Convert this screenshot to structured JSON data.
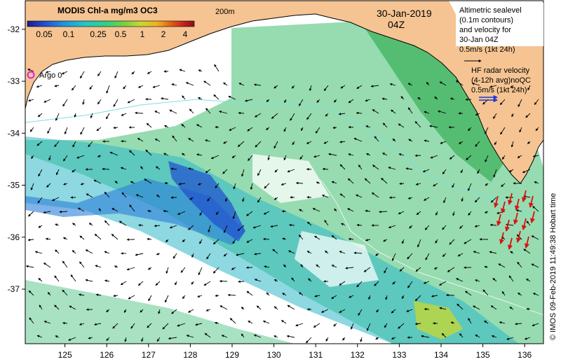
{
  "colorbar": {
    "title": "MODIS Chl-a mg/m3 OC3",
    "ticks": [
      "0.05",
      "0.1",
      "0.25",
      "0.5",
      "1",
      "2",
      "4"
    ],
    "colors": [
      "#1a1a8c",
      "#1f4fd0",
      "#1f95e0",
      "#20c8c8",
      "#35d080",
      "#78d040",
      "#c8d830",
      "#f0b020",
      "#e06018",
      "#c02020",
      "#8a1010"
    ]
  },
  "isobath_label": "200m",
  "date": "30-Jan-2019",
  "time": "04Z",
  "argo": {
    "label": "Argo 0",
    "color": "#dd22dd"
  },
  "altimetry_legend": {
    "lines": [
      "Altimetric sealevel",
      "(0.1m contours)",
      "and velocity for",
      "30-Jan 04Z",
      "0.5m/s (1kt 24h)"
    ]
  },
  "hf_legend": {
    "lines": [
      "HF radar velocity",
      "(4-12h avg)noQC",
      "0.5m/s (1kt 24h)"
    ],
    "color": "#1a3ad8"
  },
  "axis": {
    "x": {
      "range": [
        124.05,
        136.45
      ],
      "ticks": [
        125,
        126,
        127,
        128,
        129,
        130,
        131,
        132,
        133,
        134,
        135,
        136
      ]
    },
    "y": {
      "range": [
        -38.05,
        -31.45
      ],
      "ticks": [
        -32,
        -33,
        -34,
        -35,
        -36,
        -37
      ]
    }
  },
  "credit": "© IMOS 09-Feb-2019 11:49:38 Hobart time",
  "colors": {
    "land": "#f5c492",
    "ocean": "#ffffff",
    "hf_arrow": "#dd1111",
    "isobath": "#7fe0e0"
  }
}
